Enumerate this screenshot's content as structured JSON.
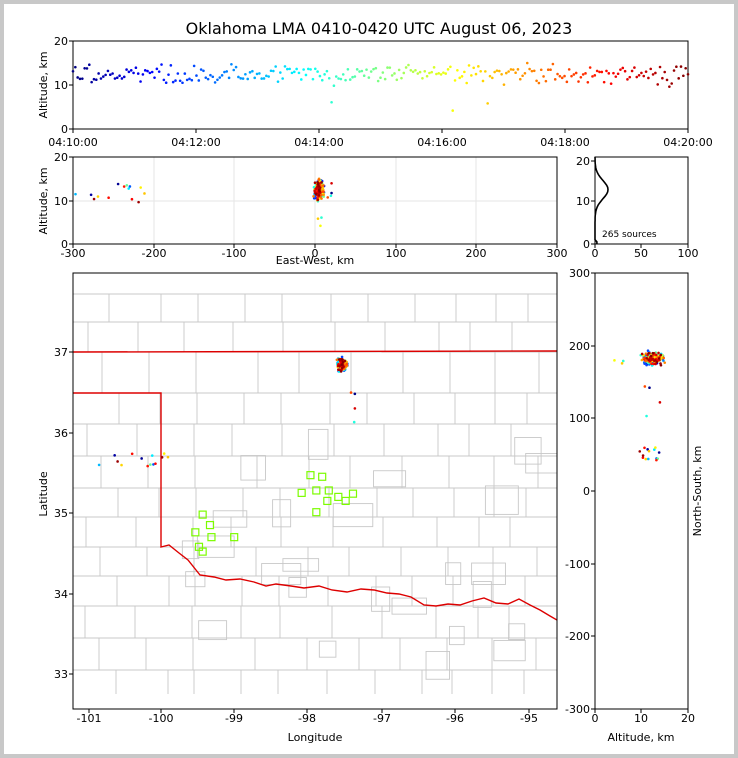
{
  "title": "Oklahoma LMA 0410-0420 UTC August 06, 2023",
  "source_count_label": "265 sources",
  "colors": {
    "state_border": "#dd0000",
    "county_lines": "#c8c8c8",
    "stations": "#7cfc00",
    "early": "#00008b",
    "late": "#b40000"
  },
  "chart_data": [
    {
      "id": "time-height",
      "type": "scatter",
      "xlabel": "",
      "ylabel": "Altitude, km",
      "x_ticks": [
        "04:10:00",
        "04:12:00",
        "04:14:00",
        "04:16:00",
        "04:18:00",
        "04:20:00"
      ],
      "xlim": [
        "04:10:00",
        "04:20:00"
      ],
      "ylim": [
        0,
        20
      ],
      "y_ticks": [
        0,
        10,
        20
      ],
      "color_by": "time"
    },
    {
      "id": "ew-altitude",
      "type": "scatter",
      "xlabel": "East-West, km",
      "ylabel": "Altitude, km",
      "xlim": [
        -300,
        300
      ],
      "x_ticks": [
        -300,
        -200,
        -100,
        0,
        100,
        200,
        300
      ],
      "ylim": [
        0,
        20
      ],
      "y_ticks": [
        0,
        10,
        20
      ],
      "grid": true
    },
    {
      "id": "altitude-histogram",
      "type": "line",
      "xlabel": "",
      "ylabel": "",
      "xlim": [
        0,
        100
      ],
      "x_ticks": [
        0,
        50,
        100
      ],
      "ylim": [
        0,
        20
      ],
      "y_ticks": [
        0,
        10,
        20
      ],
      "annotation": "265 sources"
    },
    {
      "id": "plan-view",
      "type": "scatter",
      "xlabel": "Longitude",
      "ylabel": "Latitude",
      "xlim": [
        -101.2,
        -94.4
      ],
      "x_ticks": [
        -101,
        -100,
        -99,
        -98,
        -97,
        -96,
        -95
      ],
      "ylim": [
        32.6,
        38.0
      ],
      "y_ticks": [
        33,
        34,
        35,
        36,
        37
      ],
      "stations": [
        {
          "lon": -97.98,
          "lat": 35.47
        },
        {
          "lon": -97.82,
          "lat": 35.45
        },
        {
          "lon": -97.9,
          "lat": 35.28
        },
        {
          "lon": -98.1,
          "lat": 35.25
        },
        {
          "lon": -97.73,
          "lat": 35.28
        },
        {
          "lon": -97.6,
          "lat": 35.2
        },
        {
          "lon": -97.75,
          "lat": 35.15
        },
        {
          "lon": -97.5,
          "lat": 35.15
        },
        {
          "lon": -97.4,
          "lat": 35.24
        },
        {
          "lon": -97.9,
          "lat": 35.01
        },
        {
          "lon": -99.45,
          "lat": 34.98
        },
        {
          "lon": -99.35,
          "lat": 34.85
        },
        {
          "lon": -99.55,
          "lat": 34.76
        },
        {
          "lon": -99.33,
          "lat": 34.7
        },
        {
          "lon": -99.02,
          "lat": 34.7
        },
        {
          "lon": -99.5,
          "lat": 34.58
        },
        {
          "lon": -99.45,
          "lat": 34.52
        }
      ]
    },
    {
      "id": "altitude-ns",
      "type": "scatter",
      "xlabel": "Altitude, km",
      "ylabel": "North-South, km",
      "xlim": [
        0,
        20
      ],
      "x_ticks": [
        0,
        10,
        20
      ],
      "ylim": [
        -300,
        300
      ],
      "y_ticks": [
        -300,
        -200,
        -100,
        0,
        100,
        200,
        300
      ]
    }
  ]
}
